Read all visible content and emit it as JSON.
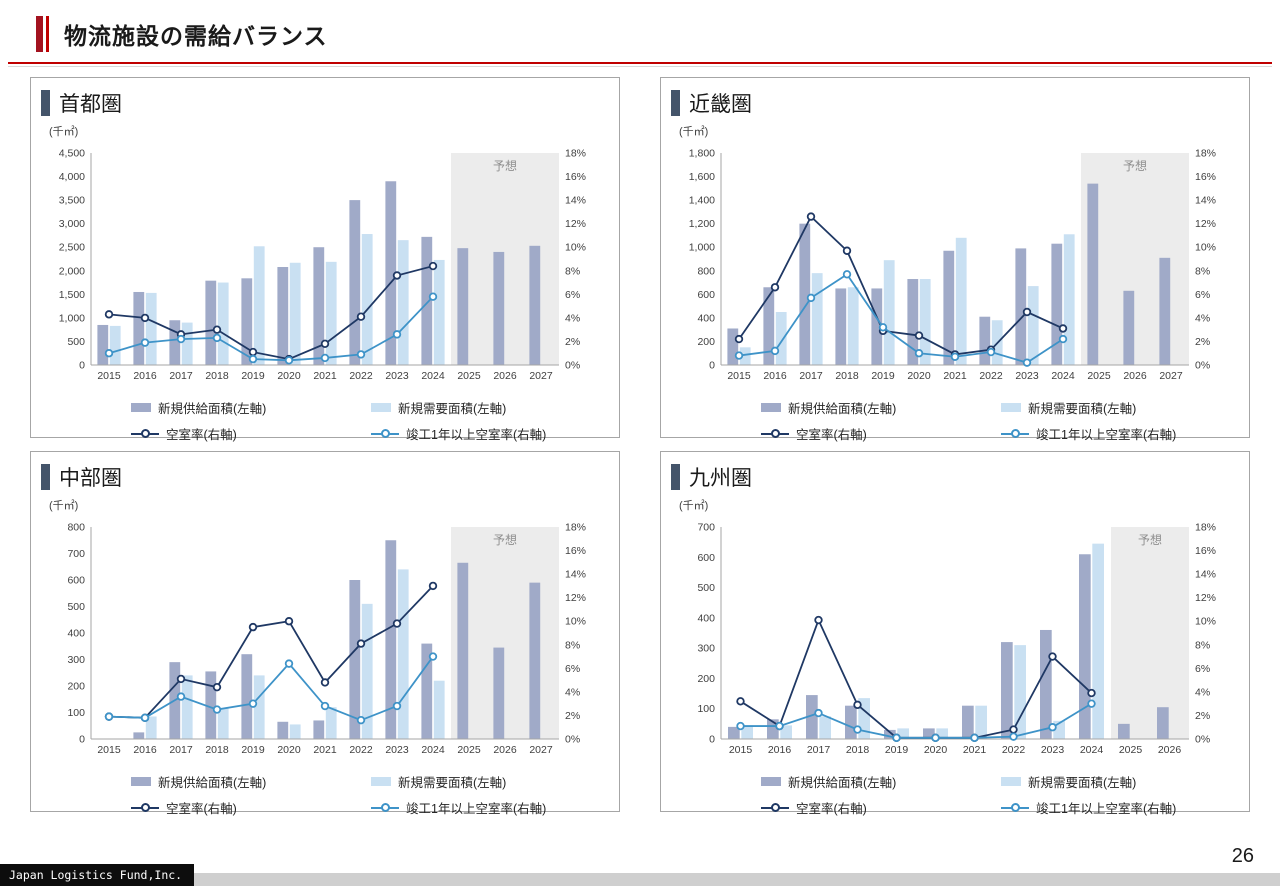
{
  "page": {
    "title": "物流施設の需給バランス",
    "footer_brand": "Japan Logistics Fund,Inc.",
    "page_number": "26"
  },
  "legend": {
    "supply": "新規供給面積(左軸)",
    "demand": "新規需要面積(左軸)",
    "vacancy": "空室率(右軸)",
    "vacancy_1yr": "竣工1年以上空室率(右軸)"
  },
  "colors": {
    "supply_bar": "#a0aac8",
    "demand_bar": "#c9e0f2",
    "vacancy_line": "#1f3864",
    "vacancy_1yr_line": "#3e93c8",
    "forecast_bg": "#ececec",
    "forecast_text": "#8f8f8f",
    "panel_accent": "#44546a",
    "axis_text": "#404040",
    "axis_line": "#a6a6a6",
    "header_red": "#c00000"
  },
  "chart_data": [
    {
      "type": "bar+line",
      "title": "首都圏",
      "unit_label": "(千㎡)",
      "forecast_label": "予想",
      "years": [
        "2015",
        "2016",
        "2017",
        "2018",
        "2019",
        "2020",
        "2021",
        "2022",
        "2023",
        "2024",
        "2025",
        "2026",
        "2027"
      ],
      "left_max": 4500,
      "left_step": 500,
      "right_max": 18,
      "right_step": 2,
      "right_suffix": "%",
      "forecast_start_index": 10,
      "supply": [
        850,
        1550,
        950,
        1790,
        1840,
        2080,
        2500,
        3500,
        3900,
        2720,
        2480,
        2400,
        2530
      ],
      "demand": [
        830,
        1530,
        900,
        1750,
        2520,
        2170,
        2190,
        2780,
        2650,
        2230,
        null,
        null,
        null
      ],
      "vacancy_pct": [
        4.3,
        4.0,
        2.6,
        3.0,
        1.1,
        0.5,
        1.8,
        4.1,
        7.6,
        8.4
      ],
      "vacancy_1yr_pct": [
        1.0,
        1.9,
        2.2,
        2.3,
        0.5,
        0.4,
        0.6,
        0.9,
        2.6,
        5.8
      ]
    },
    {
      "type": "bar+line",
      "title": "近畿圏",
      "unit_label": "(千㎡)",
      "forecast_label": "予想",
      "years": [
        "2015",
        "2016",
        "2017",
        "2018",
        "2019",
        "2020",
        "2021",
        "2022",
        "2023",
        "2024",
        "2025",
        "2026",
        "2027"
      ],
      "left_max": 1800,
      "left_step": 200,
      "right_max": 18,
      "right_step": 2,
      "right_suffix": "%",
      "forecast_start_index": 10,
      "supply": [
        310,
        660,
        1200,
        650,
        650,
        730,
        970,
        410,
        990,
        1030,
        1540,
        630,
        910
      ],
      "demand": [
        150,
        450,
        780,
        660,
        890,
        730,
        1080,
        380,
        670,
        1110,
        null,
        null,
        null
      ],
      "vacancy_pct": [
        2.2,
        6.6,
        12.6,
        9.7,
        2.9,
        2.5,
        0.9,
        1.3,
        4.5,
        3.1
      ],
      "vacancy_1yr_pct": [
        0.8,
        1.2,
        5.7,
        7.7,
        3.2,
        1.0,
        0.7,
        1.1,
        0.2,
        2.2
      ]
    },
    {
      "type": "bar+line",
      "title": "中部圏",
      "unit_label": "(千㎡)",
      "forecast_label": "予想",
      "years": [
        "2015",
        "2016",
        "2017",
        "2018",
        "2019",
        "2020",
        "2021",
        "2022",
        "2023",
        "2024",
        "2025",
        "2026",
        "2027"
      ],
      "left_max": 800,
      "left_step": 100,
      "right_max": 18,
      "right_step": 2,
      "right_suffix": "%",
      "forecast_start_index": 10,
      "supply": [
        0,
        25,
        290,
        255,
        320,
        65,
        70,
        600,
        750,
        360,
        665,
        345,
        590
      ],
      "demand": [
        0,
        85,
        240,
        115,
        240,
        55,
        120,
        510,
        640,
        220,
        null,
        null,
        null
      ],
      "vacancy_pct": [
        1.9,
        1.8,
        5.1,
        4.4,
        9.5,
        10.0,
        4.8,
        8.1,
        9.8,
        13.0
      ],
      "vacancy_1yr_pct": [
        1.9,
        1.8,
        3.6,
        2.5,
        3.0,
        6.4,
        2.8,
        1.6,
        2.8,
        7.0
      ]
    },
    {
      "type": "bar+line",
      "title": "九州圏",
      "unit_label": "(千㎡)",
      "forecast_label": "予想",
      "years": [
        "2015",
        "2016",
        "2017",
        "2018",
        "2019",
        "2020",
        "2021",
        "2022",
        "2023",
        "2024",
        "2025",
        "2026"
      ],
      "left_max": 700,
      "left_step": 100,
      "right_max": 18,
      "right_step": 2,
      "right_suffix": "%",
      "forecast_start_index": 10,
      "supply": [
        40,
        65,
        145,
        110,
        30,
        35,
        110,
        320,
        360,
        610,
        50,
        105
      ],
      "demand": [
        45,
        45,
        75,
        135,
        35,
        35,
        110,
        310,
        60,
        645,
        null,
        null
      ],
      "vacancy_pct": [
        3.2,
        1.1,
        10.1,
        2.9,
        0.1,
        0.1,
        0.1,
        0.8,
        7.0,
        3.9
      ],
      "vacancy_1yr_pct": [
        1.1,
        1.1,
        2.2,
        0.8,
        0.1,
        0.1,
        0.1,
        0.2,
        1.0,
        3.0
      ]
    }
  ]
}
